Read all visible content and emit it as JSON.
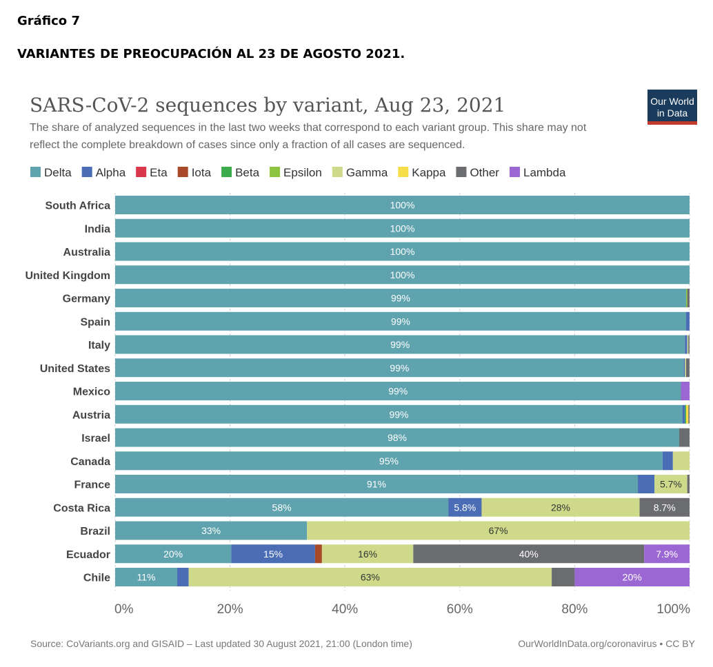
{
  "document": {
    "title": "Gráfico 7",
    "subtitle": "VARIANTES DE PREOCUPACIÓN AL 23 DE AGOSTO 2021."
  },
  "logo": {
    "line1": "Our World",
    "line2": "in Data",
    "bg": "#1a3b5c",
    "accent": "#c0392b"
  },
  "footer": {
    "source": "Source: CoVariants.org and GISAID – Last updated 30 August 2021, 21:00 (London time)",
    "credit": "OurWorldInData.org/coronavirus • CC BY"
  },
  "chart_data": {
    "type": "bar",
    "orientation": "horizontal",
    "stacked": true,
    "title": "SARS-CoV-2 sequences by variant, Aug 23, 2021",
    "subtitle_lines": [
      "The share of analyzed sequences in the last two weeks that correspond to each variant group. This share may not",
      "reflect the complete breakdown of cases since only a fraction of all cases are sequenced."
    ],
    "xlim": [
      0,
      100
    ],
    "xticks": [
      "0%",
      "20%",
      "40%",
      "60%",
      "80%",
      "100%"
    ],
    "legend_position": "top",
    "grid": "vertical dashed",
    "categories": [
      "South Africa",
      "India",
      "Australia",
      "United Kingdom",
      "Germany",
      "Spain",
      "Italy",
      "United States",
      "Mexico",
      "Austria",
      "Israel",
      "Canada",
      "France",
      "Costa Rica",
      "Brazil",
      "Ecuador",
      "Chile"
    ],
    "series": [
      {
        "name": "Delta",
        "color": "#5fa3ae",
        "label_color": "#ffffff",
        "values": [
          100,
          100,
          100,
          100,
          99.4,
          99.4,
          99.2,
          99,
          98.5,
          98.8,
          98.2,
          95.3,
          91,
          58,
          33.4,
          20.2,
          10.8
        ],
        "labels": [
          "100%",
          "100%",
          "100%",
          "100%",
          "99%",
          "99%",
          "99%",
          "99%",
          "99%",
          "99%",
          "98%",
          "95%",
          "91%",
          "58%",
          "33%",
          "20%",
          "11%"
        ]
      },
      {
        "name": "Alpha",
        "color": "#4a6db5",
        "label_color": "#ffffff",
        "values": [
          0,
          0,
          0,
          0,
          0,
          0.6,
          0.4,
          0.2,
          0,
          0.4,
          0,
          1.8,
          2.9,
          5.8,
          0,
          14.6,
          2
        ],
        "labels": [
          "",
          "",
          "",
          "",
          "",
          "",
          "",
          "",
          "",
          "",
          "",
          "",
          "",
          "5.8%",
          "",
          "15%",
          ""
        ]
      },
      {
        "name": "Eta",
        "color": "#d9374b",
        "label_color": "#ffffff",
        "values": [
          0,
          0,
          0,
          0,
          0,
          0,
          0,
          0,
          0,
          0,
          0,
          0,
          0,
          0,
          0,
          0,
          0
        ],
        "labels": [
          "",
          "",
          "",
          "",
          "",
          "",
          "",
          "",
          "",
          "",
          "",
          "",
          "",
          "",
          "",
          "",
          ""
        ]
      },
      {
        "name": "Iota",
        "color": "#a84a2a",
        "label_color": "#ffffff",
        "values": [
          0,
          0,
          0,
          0,
          0,
          0,
          0,
          0,
          0,
          0,
          0,
          0,
          0,
          0,
          0,
          1.2,
          0
        ],
        "labels": [
          "",
          "",
          "",
          "",
          "",
          "",
          "",
          "",
          "",
          "",
          "",
          "",
          "",
          "",
          "",
          "",
          ""
        ]
      },
      {
        "name": "Beta",
        "color": "#3cab4b",
        "label_color": "#ffffff",
        "values": [
          0,
          0,
          0,
          0,
          0,
          0,
          0,
          0,
          0,
          0.2,
          0,
          0,
          0,
          0,
          0,
          0,
          0
        ],
        "labels": [
          "",
          "",
          "",
          "",
          "",
          "",
          "",
          "",
          "",
          "",
          "",
          "",
          "",
          "",
          "",
          "",
          ""
        ]
      },
      {
        "name": "Epsilon",
        "color": "#8cc43f",
        "label_color": "#333333",
        "values": [
          0,
          0,
          0,
          0,
          0.2,
          0,
          0,
          0,
          0,
          0,
          0,
          0,
          0,
          0,
          0,
          0,
          0
        ],
        "labels": [
          "",
          "",
          "",
          "",
          "",
          "",
          "",
          "",
          "",
          "",
          "",
          "",
          "",
          "",
          "",
          "",
          ""
        ]
      },
      {
        "name": "Gamma",
        "color": "#cfd98a",
        "label_color": "#333333",
        "values": [
          0,
          0,
          0,
          0,
          0,
          0,
          0.2,
          0.2,
          0,
          0,
          0,
          2.9,
          5.7,
          27.5,
          66.6,
          15.9,
          63.2
        ],
        "labels": [
          "",
          "",
          "",
          "",
          "",
          "",
          "",
          "",
          "",
          "",
          "",
          "",
          "5.7%",
          "28%",
          "67%",
          "16%",
          "63%"
        ]
      },
      {
        "name": "Kappa",
        "color": "#f5de4a",
        "label_color": "#333333",
        "values": [
          0,
          0,
          0,
          0,
          0,
          0,
          0,
          0,
          0,
          0.4,
          0,
          0,
          0,
          0,
          0,
          0,
          0
        ],
        "labels": [
          "",
          "",
          "",
          "",
          "",
          "",
          "",
          "",
          "",
          "",
          "",
          "",
          "",
          "",
          "",
          "",
          ""
        ]
      },
      {
        "name": "Other",
        "color": "#6a6c70",
        "label_color": "#ffffff",
        "values": [
          0,
          0,
          0,
          0,
          0.4,
          0,
          0.2,
          0.6,
          0,
          0.2,
          1.8,
          0,
          0.4,
          8.7,
          0,
          40.2,
          4
        ],
        "labels": [
          "",
          "",
          "",
          "",
          "",
          "",
          "",
          "",
          "",
          "",
          "",
          "",
          "",
          "8.7%",
          "",
          "40%",
          ""
        ]
      },
      {
        "name": "Lambda",
        "color": "#9b68d3",
        "label_color": "#ffffff",
        "values": [
          0,
          0,
          0,
          0,
          0,
          0,
          0,
          0,
          1.5,
          0,
          0,
          0,
          0,
          0,
          0,
          7.9,
          20
        ],
        "labels": [
          "",
          "",
          "",
          "",
          "",
          "",
          "",
          "",
          "",
          "",
          "",
          "",
          "",
          "",
          "",
          "7.9%",
          "20%"
        ]
      }
    ]
  }
}
